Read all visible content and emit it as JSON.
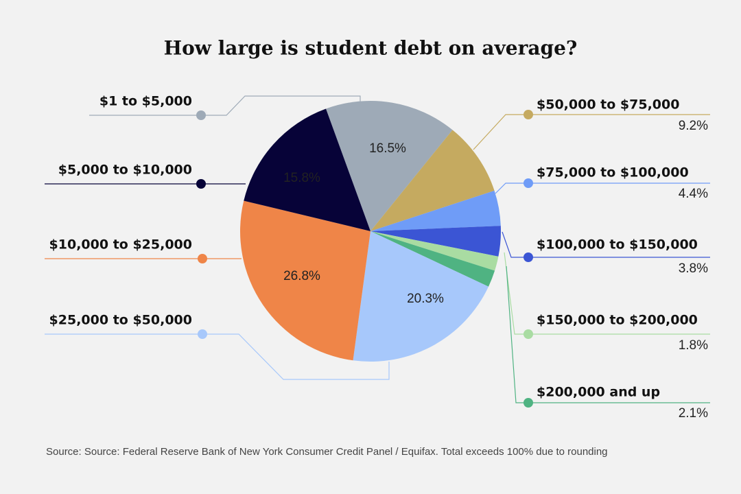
{
  "chart_data": {
    "type": "pie",
    "title": "How large is student debt on average?",
    "categories": [
      "$1 to $5,000",
      "$50,000 to $75,000",
      "$75,000 to $100,000",
      "$100,000 to $150,000",
      "$150,000 to $200,000",
      "$200,000 and up",
      "$25,000 to $50,000",
      "$10,000 to $25,000",
      "$5,000 to $10,000"
    ],
    "values": [
      16.5,
      9.2,
      4.4,
      3.8,
      1.8,
      2.1,
      20.3,
      26.8,
      15.8
    ],
    "value_labels": [
      "16.5%",
      "9.2%",
      "4.4%",
      "3.8%",
      "1.8%",
      "2.1%",
      "20.3%",
      "26.8%",
      "15.8%"
    ],
    "colors": [
      "#9eaab7",
      "#c5aa60",
      "#6f9cf7",
      "#3b55d4",
      "#a9dca2",
      "#4fb382",
      "#a7c8fb",
      "#ef8548",
      "#070338"
    ],
    "source": "Source: Source: Federal Reserve Bank of New York Consumer Credit Panel / Equifax. Total exceeds 100% due to rounding"
  }
}
